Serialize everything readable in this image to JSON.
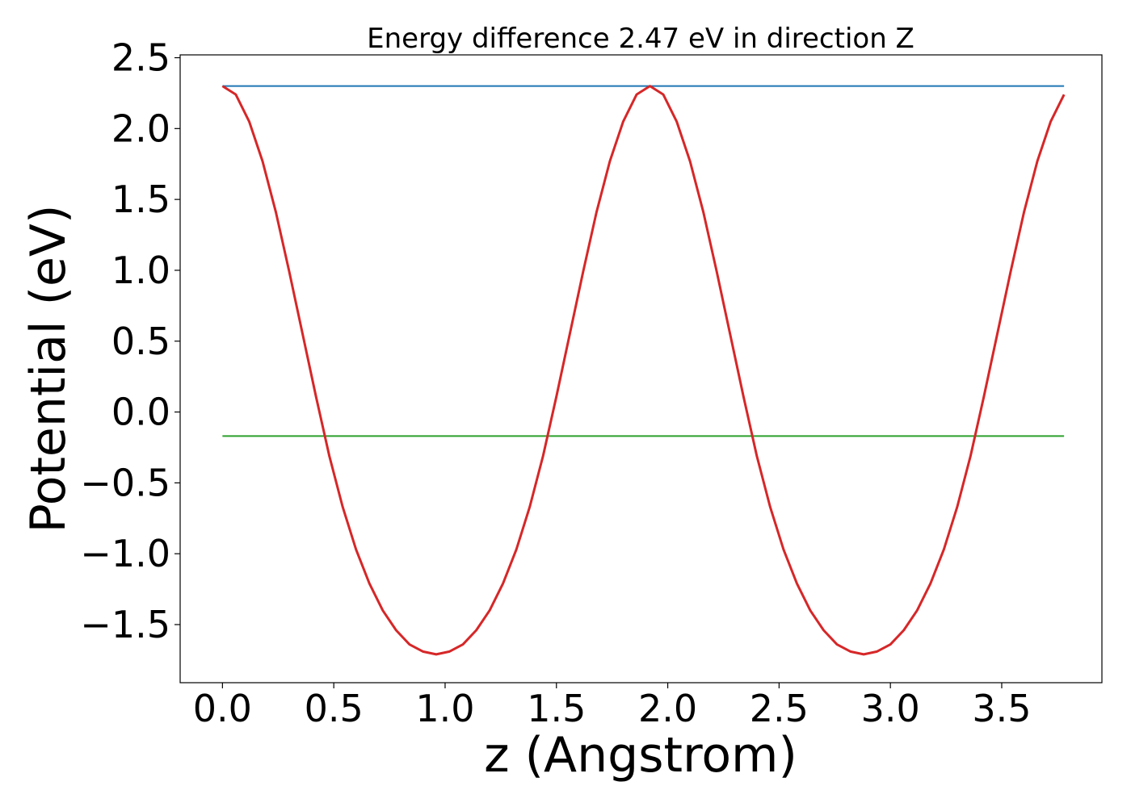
{
  "chart_data": {
    "type": "line",
    "title": "Energy difference 2.47 eV in direction Z",
    "xlabel": "z (Angstrom)",
    "ylabel": "Potential (eV)",
    "xlim": [
      -0.19,
      3.95
    ],
    "ylim": [
      -1.91,
      2.52
    ],
    "xticks": [
      0.0,
      0.5,
      1.0,
      1.5,
      2.0,
      2.5,
      3.0,
      3.5
    ],
    "xtick_labels": [
      "0.0",
      "0.5",
      "1.0",
      "1.5",
      "2.0",
      "2.5",
      "3.0",
      "3.5"
    ],
    "yticks": [
      -1.5,
      -1.0,
      -0.5,
      0.0,
      0.5,
      1.0,
      1.5,
      2.0,
      2.5
    ],
    "ytick_labels": [
      "−1.5",
      "−1.0",
      "−0.5",
      "0.0",
      "0.5",
      "1.0",
      "1.5",
      "2.0",
      "2.5"
    ],
    "grid": false,
    "legend": "none",
    "series": [
      {
        "color": "#d62728",
        "x": [
          0.0,
          0.06,
          0.12,
          0.18,
          0.24,
          0.3,
          0.36,
          0.42,
          0.48,
          0.54,
          0.6,
          0.66,
          0.72,
          0.78,
          0.84,
          0.9,
          0.96,
          1.02,
          1.08,
          1.14,
          1.2,
          1.26,
          1.32,
          1.38,
          1.44,
          1.5,
          1.56,
          1.62,
          1.68,
          1.74,
          1.8,
          1.86,
          1.92,
          1.98,
          2.04,
          2.1,
          2.16,
          2.22,
          2.28,
          2.34,
          2.4,
          2.46,
          2.52,
          2.58,
          2.64,
          2.7,
          2.76,
          2.82,
          2.88,
          2.94,
          3.0,
          3.06,
          3.12,
          3.18,
          3.24,
          3.3,
          3.36,
          3.42,
          3.48,
          3.54,
          3.6,
          3.66,
          3.72,
          3.78
        ],
        "y": [
          2.3,
          2.24,
          2.05,
          1.77,
          1.41,
          0.99,
          0.55,
          0.11,
          -0.31,
          -0.67,
          -0.97,
          -1.21,
          -1.4,
          -1.54,
          -1.64,
          -1.69,
          -1.71,
          -1.69,
          -1.64,
          -1.54,
          -1.4,
          -1.21,
          -0.97,
          -0.67,
          -0.31,
          0.11,
          0.55,
          0.99,
          1.41,
          1.77,
          2.05,
          2.24,
          2.3,
          2.24,
          2.05,
          1.77,
          1.41,
          0.99,
          0.55,
          0.11,
          -0.31,
          -0.67,
          -0.97,
          -1.21,
          -1.4,
          -1.54,
          -1.64,
          -1.69,
          -1.71,
          -1.69,
          -1.64,
          -1.54,
          -1.4,
          -1.21,
          -0.97,
          -0.67,
          -0.31,
          0.11,
          0.55,
          0.99,
          1.41,
          1.77,
          2.05,
          2.24
        ]
      },
      {
        "color": "#1f77b4",
        "x": [
          0.0,
          3.78
        ],
        "y": [
          2.3,
          2.3
        ]
      },
      {
        "color": "#2ca02c",
        "x": [
          0.0,
          3.78
        ],
        "y": [
          -0.17,
          -0.17
        ]
      }
    ]
  }
}
